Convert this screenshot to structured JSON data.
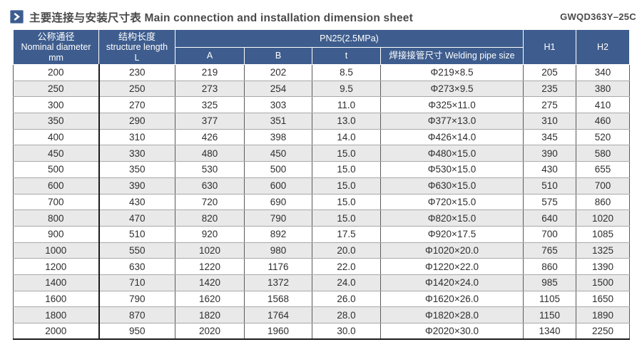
{
  "header": {
    "title": "主要连接与安装尺寸表 Main connection and installation dimension sheet",
    "model_code": "GWQD363Y–25C"
  },
  "table": {
    "columns": {
      "nominal": {
        "zh": "公称通径",
        "en": "Nominal diameter",
        "unit": "mm"
      },
      "length": {
        "zh": "结构长度",
        "en": "structure length",
        "unit": "L"
      },
      "pn_group": "PN25(2.5MPa)",
      "a": "A",
      "b": "B",
      "t": "t",
      "welding": "焊接接管尺寸 Welding pipe size",
      "h1": "H1",
      "h2": "H2"
    },
    "rows": [
      [
        "200",
        "230",
        "219",
        "202",
        "8.5",
        "Φ219×8.5",
        "205",
        "340"
      ],
      [
        "250",
        "250",
        "273",
        "254",
        "9.5",
        "Φ273×9.5",
        "235",
        "380"
      ],
      [
        "300",
        "270",
        "325",
        "303",
        "11.0",
        "Φ325×11.0",
        "275",
        "410"
      ],
      [
        "350",
        "290",
        "377",
        "351",
        "13.0",
        "Φ377×13.0",
        "310",
        "460"
      ],
      [
        "400",
        "310",
        "426",
        "398",
        "14.0",
        "Φ426×14.0",
        "345",
        "520"
      ],
      [
        "450",
        "330",
        "480",
        "450",
        "15.0",
        "Φ480×15.0",
        "390",
        "580"
      ],
      [
        "500",
        "350",
        "530",
        "500",
        "15.0",
        "Φ530×15.0",
        "430",
        "655"
      ],
      [
        "600",
        "390",
        "630",
        "600",
        "15.0",
        "Φ630×15.0",
        "510",
        "700"
      ],
      [
        "700",
        "430",
        "720",
        "690",
        "15.0",
        "Φ720×15.0",
        "575",
        "860"
      ],
      [
        "800",
        "470",
        "820",
        "790",
        "15.0",
        "Φ820×15.0",
        "640",
        "1020"
      ],
      [
        "900",
        "510",
        "920",
        "892",
        "17.5",
        "Φ920×17.5",
        "700",
        "1085"
      ],
      [
        "1000",
        "550",
        "1020",
        "980",
        "20.0",
        "Φ1020×20.0",
        "765",
        "1325"
      ],
      [
        "1200",
        "630",
        "1220",
        "1176",
        "22.0",
        "Φ1220×22.0",
        "860",
        "1390"
      ],
      [
        "1400",
        "710",
        "1420",
        "1372",
        "24.0",
        "Φ1420×24.0",
        "985",
        "1500"
      ],
      [
        "1600",
        "790",
        "1620",
        "1568",
        "26.0",
        "Φ1620×26.0",
        "1105",
        "1650"
      ],
      [
        "1800",
        "870",
        "1820",
        "1764",
        "28.0",
        "Φ1820×28.0",
        "1150",
        "1890"
      ],
      [
        "2000",
        "950",
        "2020",
        "1960",
        "30.0",
        "Φ2020×30.0",
        "1340",
        "2250"
      ]
    ]
  },
  "colors": {
    "header_blue": "#3e5d8e",
    "row_alt_gray": "#e9e9e9",
    "title_text": "#4a4a4a",
    "border_dark": "#1c1c1c"
  }
}
